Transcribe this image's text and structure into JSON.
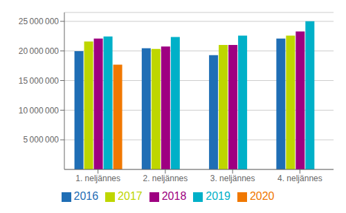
{
  "chart_data": {
    "type": "bar",
    "categories": [
      "1. neljännes",
      "2. neljännes",
      "3. neljännes",
      "4. neljännes"
    ],
    "series": [
      {
        "name": "2016",
        "color": "#1f6eb5",
        "values": [
          19950000,
          20450000,
          19300000,
          22100000
        ]
      },
      {
        "name": "2017",
        "color": "#bed600",
        "values": [
          21600000,
          20350000,
          21000000,
          22600000
        ]
      },
      {
        "name": "2018",
        "color": "#9e0081",
        "values": [
          22100000,
          20750000,
          21000000,
          23300000
        ]
      },
      {
        "name": "2019",
        "color": "#00b0c8",
        "values": [
          22450000,
          22350000,
          22600000,
          25000000
        ]
      },
      {
        "name": "2020",
        "color": "#f07800",
        "values": [
          17700000,
          null,
          null,
          null
        ]
      }
    ],
    "ylim": [
      0,
      26500000
    ],
    "yticks": [
      {
        "value": 5000000,
        "label": "5 000 000"
      },
      {
        "value": 10000000,
        "label": "10 000 000"
      },
      {
        "value": 15000000,
        "label": "15 000 000"
      },
      {
        "value": 20000000,
        "label": "20 000 000"
      },
      {
        "value": 25000000,
        "label": "25 000 000"
      }
    ],
    "grid": true,
    "legend": "bottom"
  }
}
